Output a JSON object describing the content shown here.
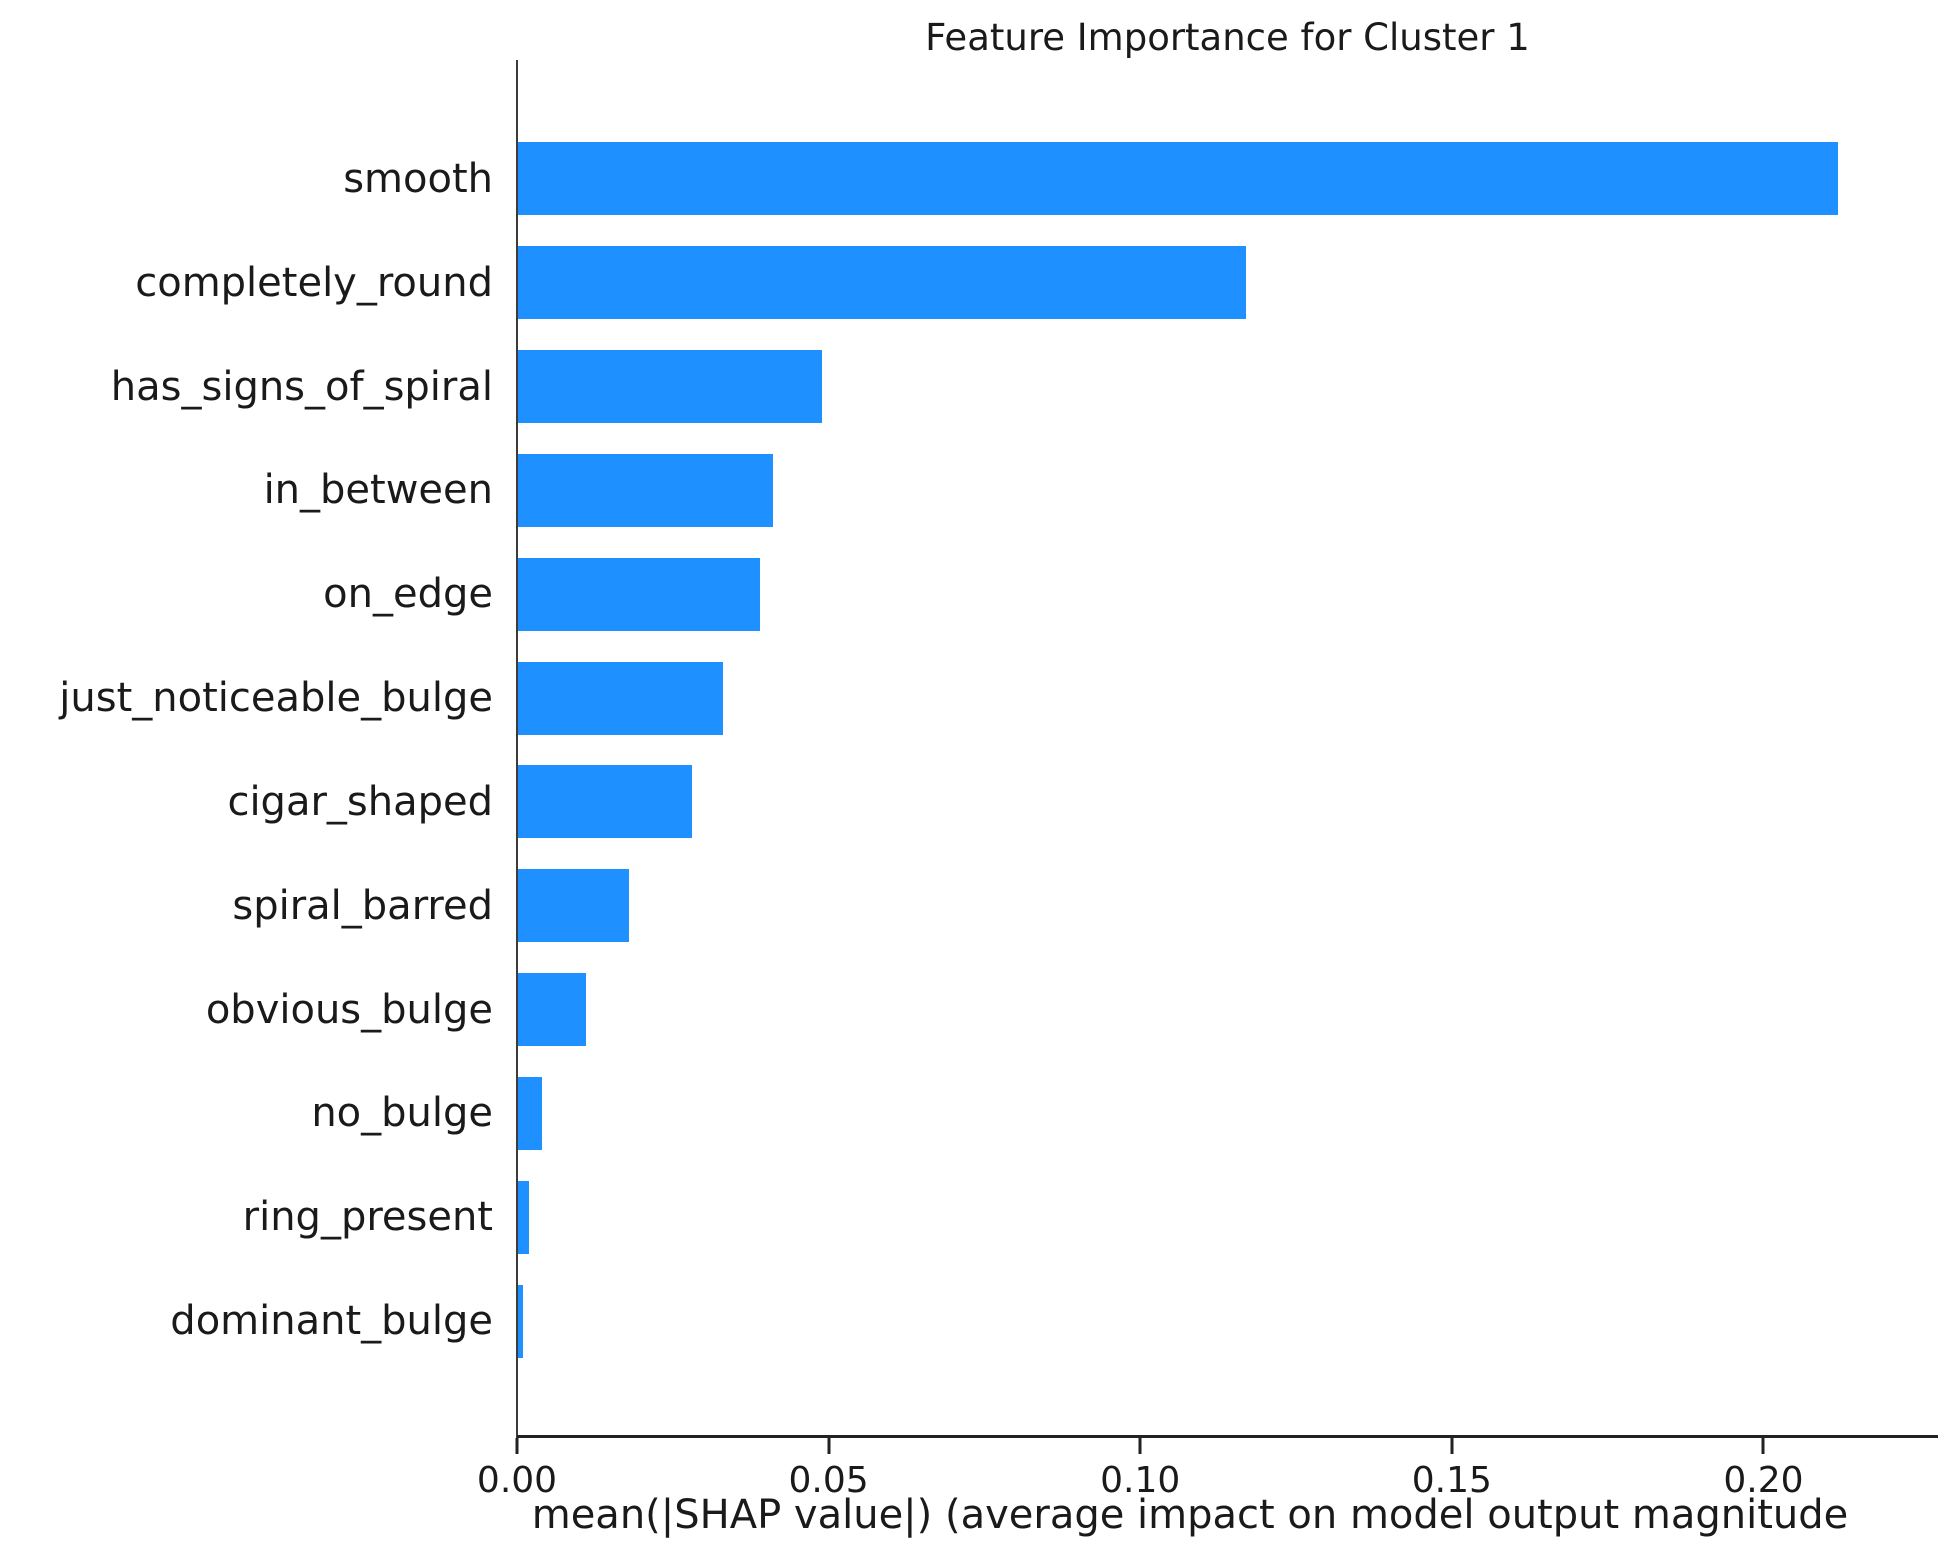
{
  "colors": {
    "bar": "#1E90FF",
    "text": "#1a1a1a",
    "spine": "#222222",
    "background": "#ffffff"
  },
  "chart_data": {
    "type": "bar",
    "orientation": "horizontal",
    "title": "Feature Importance for Cluster 1",
    "xlabel": "mean(|SHAP value|) (average impact on model output magnitude",
    "ylabel": "",
    "categories": [
      "smooth",
      "completely_round",
      "has_signs_of_spiral",
      "in_between",
      "on_edge",
      "just_noticeable_bulge",
      "cigar_shaped",
      "spiral_barred",
      "obvious_bulge",
      "no_bulge",
      "ring_present",
      "dominant_bulge"
    ],
    "values": [
      0.212,
      0.117,
      0.049,
      0.041,
      0.039,
      0.033,
      0.028,
      0.018,
      0.011,
      0.004,
      0.002,
      0.001
    ],
    "xlim": [
      0,
      0.228
    ],
    "xticks": [
      0.0,
      0.05,
      0.1,
      0.15,
      0.2
    ],
    "xtick_labels": [
      "0.00",
      "0.05",
      "0.10",
      "0.15",
      "0.20"
    ],
    "grid": false,
    "legend": null,
    "bar_color": "#1E90FF"
  }
}
